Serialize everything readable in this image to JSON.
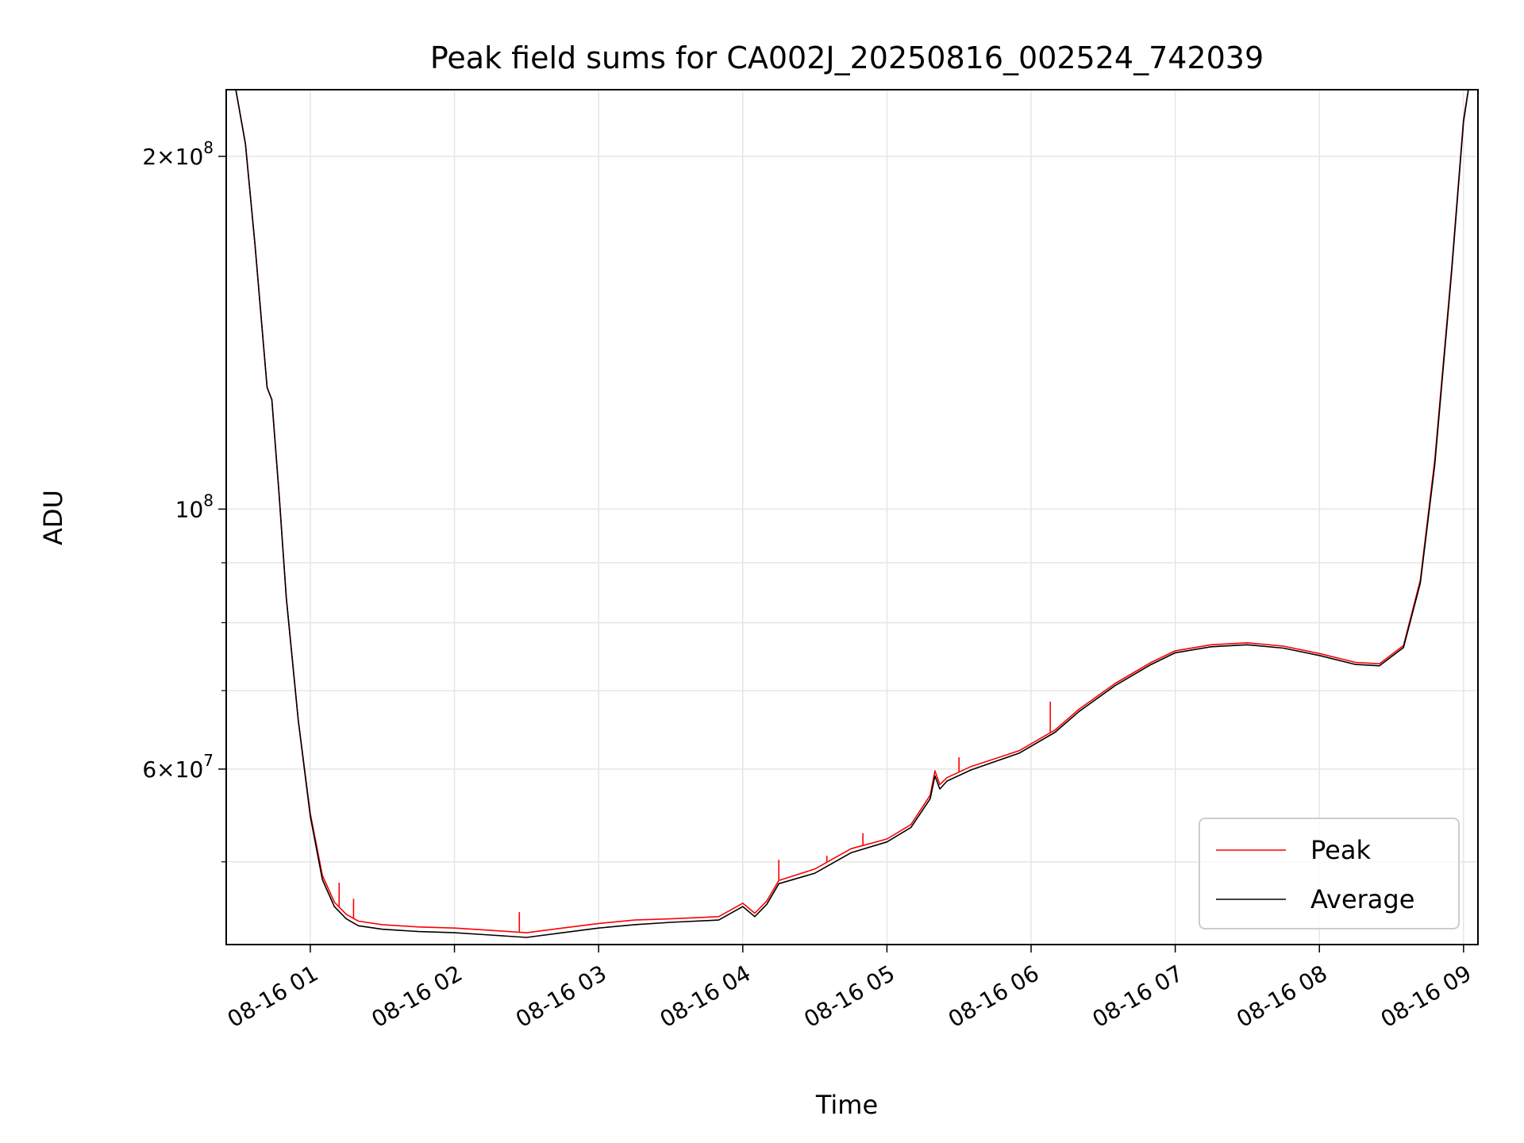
{
  "chart_data": {
    "type": "line",
    "title": "Peak field sums for CA002J_20250816_002524_742039",
    "xlabel": "Time",
    "ylabel": "ADU",
    "yscale": "log",
    "grid": true,
    "legend_placement": "bottom-right",
    "xlim": [
      "2025-08-16 00:25",
      "2025-08-16 09:06"
    ],
    "ylim": [
      42500000,
      228000000
    ],
    "x_ticks": [
      "08-16 01",
      "08-16 02",
      "08-16 03",
      "08-16 04",
      "08-16 05",
      "08-16 06",
      "08-16 07",
      "08-16 08",
      "08-16 09"
    ],
    "y_tick_labels": [
      {
        "base": "2",
        "exp": "8",
        "value": 200000000
      },
      {
        "base": "10",
        "exp": "8",
        "value": 100000000
      },
      {
        "base": "6",
        "exp": "7",
        "value": 60000000
      }
    ],
    "y_minor_ticks": [
      50000000,
      70000000,
      80000000,
      90000000
    ],
    "series": [
      {
        "name": "Peak",
        "color": "#ff0000",
        "points": [
          [
            "2025-08-16 00:25",
            228000000
          ],
          [
            "2025-08-16 00:29",
            228000000
          ],
          [
            "2025-08-16 00:33",
            205000000
          ],
          [
            "2025-08-16 00:37",
            168000000
          ],
          [
            "2025-08-16 00:42",
            127000000
          ],
          [
            "2025-08-16 00:44",
            124000000
          ],
          [
            "2025-08-16 00:47",
            103000000
          ],
          [
            "2025-08-16 00:50",
            84000000
          ],
          [
            "2025-08-16 00:55",
            66000000
          ],
          [
            "2025-08-16 01:00",
            55000000
          ],
          [
            "2025-08-16 01:05",
            48700000
          ],
          [
            "2025-08-16 01:10",
            46200000
          ],
          [
            "2025-08-16 01:15",
            45100000
          ],
          [
            "2025-08-16 01:20",
            44500000
          ],
          [
            "2025-08-16 01:30",
            44200000
          ],
          [
            "2025-08-16 01:45",
            44000000
          ],
          [
            "2025-08-16 02:00",
            43900000
          ],
          [
            "2025-08-16 02:15",
            43700000
          ],
          [
            "2025-08-16 02:30",
            43500000
          ],
          [
            "2025-08-16 02:45",
            43900000
          ],
          [
            "2025-08-16 03:00",
            44300000
          ],
          [
            "2025-08-16 03:15",
            44600000
          ],
          [
            "2025-08-16 03:30",
            44700000
          ],
          [
            "2025-08-16 03:50",
            44900000
          ],
          [
            "2025-08-16 04:00",
            46100000
          ],
          [
            "2025-08-16 04:05",
            45200000
          ],
          [
            "2025-08-16 04:10",
            46300000
          ],
          [
            "2025-08-16 04:15",
            48200000
          ],
          [
            "2025-08-16 04:30",
            49300000
          ],
          [
            "2025-08-16 04:45",
            51300000
          ],
          [
            "2025-08-16 05:00",
            52300000
          ],
          [
            "2025-08-16 05:10",
            53800000
          ],
          [
            "2025-08-16 05:18",
            57000000
          ],
          [
            "2025-08-16 05:20",
            59800000
          ],
          [
            "2025-08-16 05:22",
            58200000
          ],
          [
            "2025-08-16 05:25",
            59000000
          ],
          [
            "2025-08-16 05:35",
            60300000
          ],
          [
            "2025-08-16 05:55",
            62200000
          ],
          [
            "2025-08-16 06:10",
            64800000
          ],
          [
            "2025-08-16 06:20",
            67500000
          ],
          [
            "2025-08-16 06:35",
            71000000
          ],
          [
            "2025-08-16 06:50",
            74000000
          ],
          [
            "2025-08-16 07:00",
            75700000
          ],
          [
            "2025-08-16 07:15",
            76600000
          ],
          [
            "2025-08-16 07:30",
            76900000
          ],
          [
            "2025-08-16 07:45",
            76400000
          ],
          [
            "2025-08-16 08:00",
            75300000
          ],
          [
            "2025-08-16 08:15",
            74000000
          ],
          [
            "2025-08-16 08:25",
            73800000
          ],
          [
            "2025-08-16 08:35",
            76500000
          ],
          [
            "2025-08-16 08:42",
            87000000
          ],
          [
            "2025-08-16 08:48",
            110000000
          ],
          [
            "2025-08-16 08:55",
            160000000
          ],
          [
            "2025-08-16 09:00",
            215000000
          ],
          [
            "2025-08-16 09:02",
            228000000
          ],
          [
            "2025-08-16 09:06",
            228000000
          ]
        ],
        "spikes": [
          [
            "2025-08-16 01:12",
            48000000
          ],
          [
            "2025-08-16 01:18",
            46500000
          ],
          [
            "2025-08-16 02:27",
            45300000
          ],
          [
            "2025-08-16 04:15",
            50200000
          ],
          [
            "2025-08-16 04:35",
            50600000
          ],
          [
            "2025-08-16 04:50",
            52900000
          ],
          [
            "2025-08-16 05:30",
            61400000
          ],
          [
            "2025-08-16 06:08",
            68500000
          ]
        ]
      },
      {
        "name": "Average",
        "color": "#000000",
        "points": [
          [
            "2025-08-16 00:25",
            228000000
          ],
          [
            "2025-08-16 00:29",
            228000000
          ],
          [
            "2025-08-16 00:33",
            205000000
          ],
          [
            "2025-08-16 00:37",
            168000000
          ],
          [
            "2025-08-16 00:42",
            127000000
          ],
          [
            "2025-08-16 00:44",
            124000000
          ],
          [
            "2025-08-16 00:47",
            103000000
          ],
          [
            "2025-08-16 00:50",
            84000000
          ],
          [
            "2025-08-16 00:55",
            66000000
          ],
          [
            "2025-08-16 01:00",
            54700000
          ],
          [
            "2025-08-16 01:05",
            48300000
          ],
          [
            "2025-08-16 01:10",
            45800000
          ],
          [
            "2025-08-16 01:15",
            44700000
          ],
          [
            "2025-08-16 01:20",
            44100000
          ],
          [
            "2025-08-16 01:30",
            43800000
          ],
          [
            "2025-08-16 01:45",
            43600000
          ],
          [
            "2025-08-16 02:00",
            43500000
          ],
          [
            "2025-08-16 02:15",
            43300000
          ],
          [
            "2025-08-16 02:30",
            43100000
          ],
          [
            "2025-08-16 02:45",
            43500000
          ],
          [
            "2025-08-16 03:00",
            43900000
          ],
          [
            "2025-08-16 03:15",
            44200000
          ],
          [
            "2025-08-16 03:30",
            44400000
          ],
          [
            "2025-08-16 03:50",
            44600000
          ],
          [
            "2025-08-16 04:00",
            45800000
          ],
          [
            "2025-08-16 04:05",
            44900000
          ],
          [
            "2025-08-16 04:10",
            46000000
          ],
          [
            "2025-08-16 04:15",
            47900000
          ],
          [
            "2025-08-16 04:30",
            48900000
          ],
          [
            "2025-08-16 04:45",
            50900000
          ],
          [
            "2025-08-16 05:00",
            52000000
          ],
          [
            "2025-08-16 05:10",
            53500000
          ],
          [
            "2025-08-16 05:18",
            56600000
          ],
          [
            "2025-08-16 05:20",
            59200000
          ],
          [
            "2025-08-16 05:22",
            57700000
          ],
          [
            "2025-08-16 05:25",
            58600000
          ],
          [
            "2025-08-16 05:35",
            59900000
          ],
          [
            "2025-08-16 05:55",
            61900000
          ],
          [
            "2025-08-16 06:10",
            64500000
          ],
          [
            "2025-08-16 06:20",
            67200000
          ],
          [
            "2025-08-16 06:35",
            70700000
          ],
          [
            "2025-08-16 06:50",
            73700000
          ],
          [
            "2025-08-16 07:00",
            75400000
          ],
          [
            "2025-08-16 07:15",
            76300000
          ],
          [
            "2025-08-16 07:30",
            76600000
          ],
          [
            "2025-08-16 07:45",
            76100000
          ],
          [
            "2025-08-16 08:00",
            75000000
          ],
          [
            "2025-08-16 08:15",
            73700000
          ],
          [
            "2025-08-16 08:25",
            73500000
          ],
          [
            "2025-08-16 08:35",
            76200000
          ],
          [
            "2025-08-16 08:42",
            86500000
          ],
          [
            "2025-08-16 08:48",
            109000000
          ],
          [
            "2025-08-16 08:55",
            159000000
          ],
          [
            "2025-08-16 09:00",
            214000000
          ],
          [
            "2025-08-16 09:02",
            228000000
          ],
          [
            "2025-08-16 09:06",
            228000000
          ]
        ]
      }
    ]
  }
}
